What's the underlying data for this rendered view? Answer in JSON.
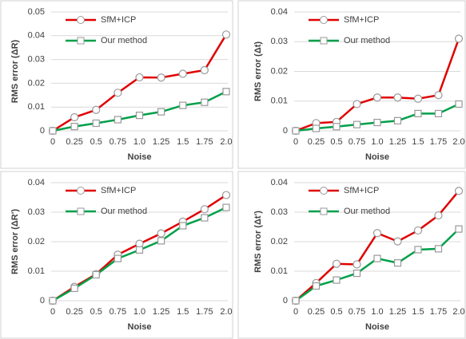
{
  "chart_data": [
    {
      "type": "line",
      "ylabel": "RMS error (ΔR)",
      "xlabel": "Noise",
      "categories": [
        "0",
        "0.25",
        "0.5",
        "0.75",
        "1.0",
        "1.25",
        "1.5",
        "1.75",
        "2.0"
      ],
      "ylim": [
        0,
        0.05
      ],
      "yticks": [
        0,
        0.01,
        0.02,
        0.03,
        0.04,
        0.05
      ],
      "grid": true,
      "series": [
        {
          "name": "SfM+ICP",
          "color": "#e00000",
          "values": [
            0,
            0.0057,
            0.0088,
            0.016,
            0.0225,
            0.0224,
            0.024,
            0.0255,
            0.0405
          ]
        },
        {
          "name": "Our method",
          "color": "#00a04a",
          "values": [
            0,
            0.0018,
            0.0032,
            0.0047,
            0.0065,
            0.008,
            0.0107,
            0.012,
            0.0165
          ]
        }
      ]
    },
    {
      "type": "line",
      "ylabel": "RMS error (Δt)",
      "xlabel": "Noise",
      "categories": [
        "0",
        "0.25",
        "0.5",
        "0.75",
        "1.0",
        "1.25",
        "1.5",
        "1.75",
        "2.0"
      ],
      "ylim": [
        0,
        0.04
      ],
      "yticks": [
        0,
        0.01,
        0.02,
        0.03,
        0.04
      ],
      "grid": true,
      "series": [
        {
          "name": "SfM+ICP",
          "color": "#e00000",
          "values": [
            0,
            0.0026,
            0.003,
            0.009,
            0.0112,
            0.0112,
            0.0108,
            0.012,
            0.031
          ]
        },
        {
          "name": "Our method",
          "color": "#00a04a",
          "values": [
            0,
            0.0008,
            0.0014,
            0.0021,
            0.0028,
            0.0034,
            0.0058,
            0.0058,
            0.009
          ]
        }
      ]
    },
    {
      "type": "line",
      "ylabel": "RMS error (ΔR')",
      "xlabel": "Noise",
      "categories": [
        "0",
        "0.25",
        "0.5",
        "0.75",
        "1.0",
        "1.25",
        "1.5",
        "1.75",
        "2.0"
      ],
      "ylim": [
        0,
        0.04
      ],
      "yticks": [
        0,
        0.01,
        0.02,
        0.03,
        0.04
      ],
      "grid": true,
      "series": [
        {
          "name": "SfM+ICP",
          "color": "#e00000",
          "values": [
            0,
            0.0047,
            0.009,
            0.0156,
            0.0193,
            0.0228,
            0.0268,
            0.031,
            0.0358
          ]
        },
        {
          "name": "Our method",
          "color": "#00a04a",
          "values": [
            0,
            0.0042,
            0.0088,
            0.0143,
            0.0172,
            0.0203,
            0.0254,
            0.0281,
            0.0316
          ]
        }
      ]
    },
    {
      "type": "line",
      "ylabel": "RMS error (Δt')",
      "xlabel": "Noise",
      "categories": [
        "0",
        "0.25",
        "0.5",
        "0.75",
        "1.0",
        "1.25",
        "1.5",
        "1.75",
        "2.0"
      ],
      "ylim": [
        0,
        0.04
      ],
      "yticks": [
        0,
        0.01,
        0.02,
        0.03,
        0.04
      ],
      "grid": true,
      "series": [
        {
          "name": "SfM+ICP",
          "color": "#e00000",
          "values": [
            0,
            0.006,
            0.0125,
            0.0123,
            0.0229,
            0.0201,
            0.0238,
            0.0289,
            0.0372
          ]
        },
        {
          "name": "Our method",
          "color": "#00a04a",
          "values": [
            0,
            0.005,
            0.007,
            0.0093,
            0.0143,
            0.0128,
            0.0173,
            0.0176,
            0.0243
          ]
        }
      ]
    }
  ]
}
